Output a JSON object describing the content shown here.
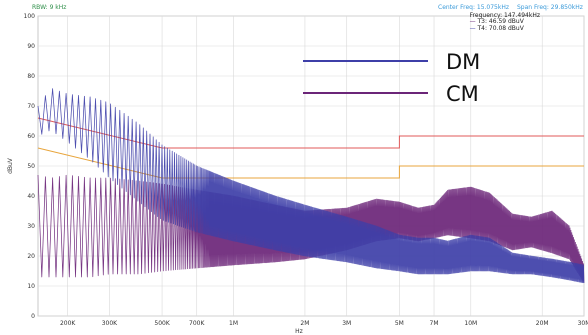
{
  "header": {
    "rbw": "RBW: 9 kHz",
    "center_freq": "Center Freq: 15.075kHz",
    "span_freq": "Span Freq: 29.850kHz"
  },
  "marker_box": {
    "frequency": "Frequency: 147.494kHz",
    "t3": "T3: 46.59 dBuV",
    "t4": "T4: 70.08 dBuV"
  },
  "colors": {
    "dm": "#3e3fa8",
    "cm": "#6b2578",
    "limit_quasi_peak": "#e05a5a",
    "limit_average": "#e8a53c",
    "grid": "#d9d9d9"
  },
  "chart_data": {
    "type": "line",
    "x_scale": "log",
    "title": "",
    "xlabel": "Hz",
    "ylabel": "dBuV",
    "ylim": [
      0,
      100
    ],
    "xlim": [
      150000,
      30000000
    ],
    "yticks": [
      0,
      10,
      20,
      30,
      40,
      50,
      60,
      70,
      80,
      90,
      100
    ],
    "xticks": [
      {
        "value": 200000,
        "label": "200K"
      },
      {
        "value": 300000,
        "label": "300K"
      },
      {
        "value": 500000,
        "label": "500K"
      },
      {
        "value": 700000,
        "label": "700K"
      },
      {
        "value": 1000000,
        "label": "1M"
      },
      {
        "value": 2000000,
        "label": "2M"
      },
      {
        "value": 3000000,
        "label": "3M"
      },
      {
        "value": 5000000,
        "label": "5M"
      },
      {
        "value": 7000000,
        "label": "7M"
      },
      {
        "value": 10000000,
        "label": "10M"
      },
      {
        "value": 20000000,
        "label": "20M"
      },
      {
        "value": 30000000,
        "label": "30M"
      }
    ],
    "grid": true,
    "legend_position": "top-right",
    "legend": [
      {
        "name": "DM",
        "color": "#3e3fa8"
      },
      {
        "name": "CM",
        "color": "#6b2578"
      }
    ],
    "limits": [
      {
        "x": [
          150000,
          500000,
          500000,
          5000000,
          5000000,
          30000000
        ],
        "y": [
          66,
          56,
          56,
          56,
          60,
          60
        ],
        "color": "#e05a5a"
      },
      {
        "x": [
          150000,
          500000,
          500000,
          5000000,
          5000000,
          30000000
        ],
        "y": [
          56,
          46,
          46,
          46,
          50,
          50
        ],
        "color": "#e8a53c"
      }
    ],
    "series": [
      {
        "name": "DM",
        "color": "#3e3fa8",
        "x": [
          150000,
          170000,
          200000,
          250000,
          300000,
          400000,
          500000,
          700000,
          1000000,
          1500000,
          2000000,
          3000000,
          4000000,
          5000000,
          6000000,
          7000000,
          8000000,
          10000000,
          12000000,
          15000000,
          18000000,
          22000000,
          26000000,
          30000000
        ],
        "peak": [
          70,
          76,
          74,
          73,
          71,
          64,
          57,
          50,
          45,
          40,
          37,
          33,
          30,
          27,
          26,
          26,
          25,
          27,
          26,
          21,
          20,
          19,
          18,
          17
        ],
        "trough": [
          60,
          62,
          58,
          52,
          46,
          38,
          32,
          28,
          25,
          22,
          20,
          18,
          16,
          15,
          14,
          14,
          14,
          15,
          15,
          14,
          14,
          13,
          12,
          11
        ]
      },
      {
        "name": "CM",
        "color": "#6b2578",
        "x": [
          150000,
          170000,
          200000,
          250000,
          300000,
          400000,
          500000,
          700000,
          1000000,
          1500000,
          2000000,
          3000000,
          4000000,
          5000000,
          6000000,
          7000000,
          8000000,
          10000000,
          12000000,
          15000000,
          18000000,
          22000000,
          26000000,
          30000000
        ],
        "peak": [
          47,
          46,
          47,
          46,
          46,
          45,
          44,
          42,
          40,
          37,
          35,
          36,
          39,
          38,
          36,
          37,
          42,
          43,
          41,
          34,
          33,
          35,
          30,
          17
        ],
        "trough": [
          13,
          13,
          13,
          13,
          14,
          14,
          15,
          16,
          17,
          18,
          19,
          22,
          25,
          26,
          25,
          26,
          27,
          26,
          25,
          22,
          23,
          21,
          19,
          11
        ]
      }
    ]
  }
}
